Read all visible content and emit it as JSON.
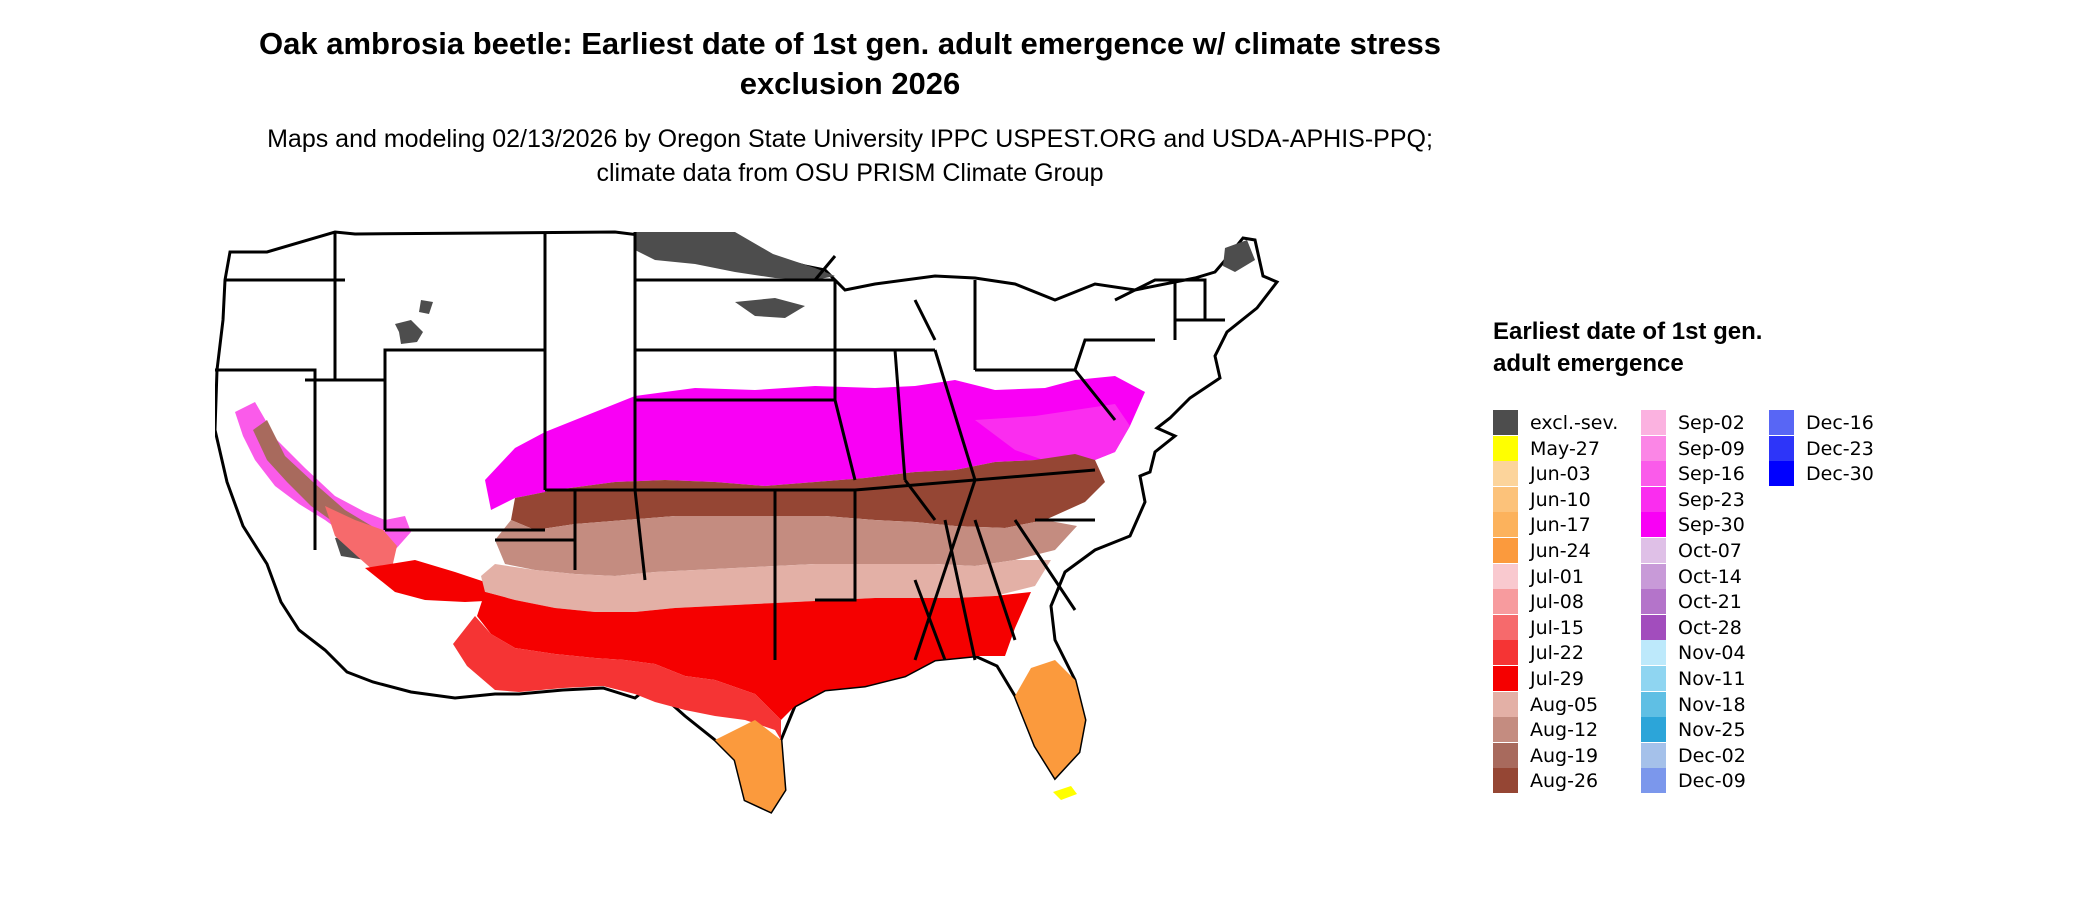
{
  "title": "Oak ambrosia beetle: Earliest date of 1st gen. adult emergence w/ climate stress exclusion 2026",
  "subtitle": "Maps and modeling 02/13/2026 by Oregon State University IPPC USPEST.ORG and USDA-APHIS-PPQ; climate data from OSU PRISM Climate Group",
  "legend": {
    "title": "Earliest date of 1st gen. adult emergence",
    "columns": [
      [
        {
          "label": "excl.-sev.",
          "color": "#4d4d4d"
        },
        {
          "label": "May-27",
          "color": "#ffff00"
        },
        {
          "label": "Jun-03",
          "color": "#fcd49b"
        },
        {
          "label": "Jun-10",
          "color": "#fcc27a"
        },
        {
          "label": "Jun-17",
          "color": "#fcb25c"
        },
        {
          "label": "Jun-24",
          "color": "#fb9a3d"
        },
        {
          "label": "Jul-01",
          "color": "#f9c9cf"
        },
        {
          "label": "Jul-08",
          "color": "#f79b9e"
        },
        {
          "label": "Jul-15",
          "color": "#f66a6c"
        },
        {
          "label": "Jul-22",
          "color": "#f53434"
        },
        {
          "label": "Jul-29",
          "color": "#f50000"
        },
        {
          "label": "Aug-05",
          "color": "#e3b0a6"
        },
        {
          "label": "Aug-12",
          "color": "#c48c80"
        },
        {
          "label": "Aug-19",
          "color": "#a86a5d"
        },
        {
          "label": "Aug-26",
          "color": "#954634"
        }
      ],
      [
        {
          "label": "Sep-02",
          "color": "#fbb2e0"
        },
        {
          "label": "Sep-09",
          "color": "#fb86e6"
        },
        {
          "label": "Sep-16",
          "color": "#fa5bea"
        },
        {
          "label": "Sep-23",
          "color": "#fa2def"
        },
        {
          "label": "Sep-30",
          "color": "#f900f5"
        },
        {
          "label": "Oct-07",
          "color": "#dfc0e7"
        },
        {
          "label": "Oct-14",
          "color": "#c89ad8"
        },
        {
          "label": "Oct-21",
          "color": "#b474ca"
        },
        {
          "label": "Oct-28",
          "color": "#a24dbd"
        },
        {
          "label": "Nov-04",
          "color": "#bde9fb"
        },
        {
          "label": "Nov-11",
          "color": "#8fd5f1"
        },
        {
          "label": "Nov-18",
          "color": "#5fbfe4"
        },
        {
          "label": "Nov-25",
          "color": "#2ca5d9"
        },
        {
          "label": "Dec-02",
          "color": "#a5c1ea"
        },
        {
          "label": "Dec-09",
          "color": "#7b97ec"
        }
      ],
      [
        {
          "label": "Dec-16",
          "color": "#5866f5"
        },
        {
          "label": "Dec-23",
          "color": "#2d35f9"
        },
        {
          "label": "Dec-30",
          "color": "#0000ff"
        }
      ]
    ]
  }
}
